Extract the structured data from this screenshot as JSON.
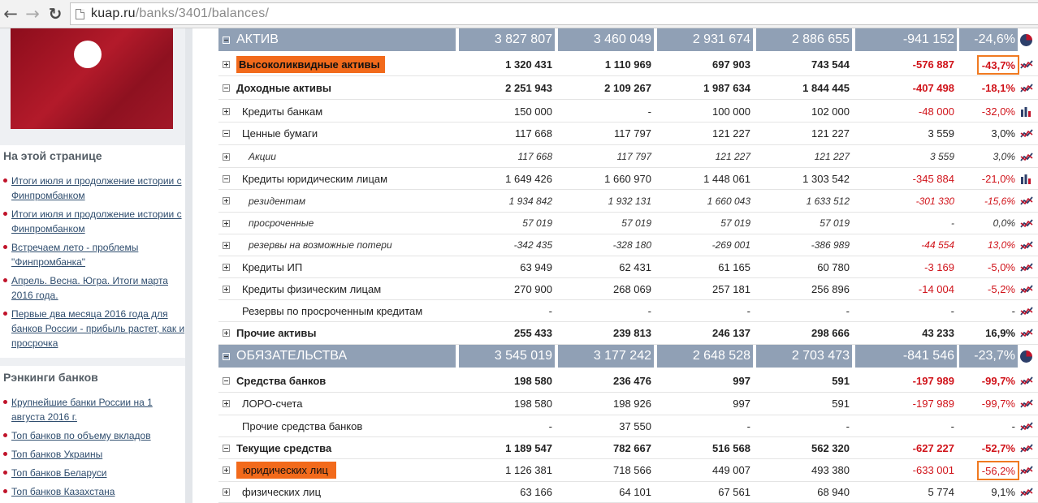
{
  "browser": {
    "back_glyph": "←",
    "forward_glyph": "→",
    "reload_glyph": "↻",
    "url_domain": "kuap.ru",
    "url_path": "/banks/3401/balances/"
  },
  "sidebar": {
    "on_page": {
      "title": "На этой странице",
      "links": [
        "Итоги июля и продолжение истории с Финпромбанком",
        "Итоги июля и продолжение истории с Финпромбанком",
        "Встречаем лето - проблемы \"Финпромбанка\"",
        "Апрель. Весна. Югра. Итоги марта 2016 года.",
        "Первые два месяца 2016 года для банков России - прибыль растет, как и просрочка"
      ]
    },
    "rankings": {
      "title": "Рэнкинги банков",
      "links": [
        "Крупнейшие банки России на 1 августа 2016 г.",
        "Топ банков по объему вкладов",
        "Топ банков Украины",
        "Топ банков Беларуси",
        "Топ банков Казахстана"
      ]
    }
  },
  "table": {
    "rows": [
      {
        "label": "АКТИВ",
        "type": "header",
        "v": [
          "3 827 807",
          "3 460 049",
          "2 931 674",
          "2 886 655",
          "-941 152",
          "-24,6%"
        ],
        "icon": "pie-chart-icon"
      },
      {
        "label": "Высоколиквидные активы",
        "type": "bold",
        "expander": "plus",
        "highlight": true,
        "v": [
          "1 320 431",
          "1 110 969",
          "697 903",
          "743 544",
          "-576 887",
          "-43,7%"
        ],
        "neg": true,
        "box": true,
        "icon": "trend-icon"
      },
      {
        "label": "Доходные активы",
        "type": "bold",
        "expander": "minus",
        "v": [
          "2 251 943",
          "2 109 267",
          "1 987 634",
          "1 844 445",
          "-407 498",
          "-18,1%"
        ],
        "neg": true,
        "icon": "trend-icon"
      },
      {
        "label": "Кредиты банкам",
        "type": "lvl1",
        "expander": "plus",
        "v": [
          "150 000",
          "-",
          "100 000",
          "102 000",
          "-48 000",
          "-32,0%"
        ],
        "neg": true,
        "icon": "bar-chart-icon"
      },
      {
        "label": "Ценные бумаги",
        "type": "lvl1",
        "expander": "minus",
        "v": [
          "117 668",
          "117 797",
          "121 227",
          "121 227",
          "3 559",
          "3,0%"
        ],
        "neg": false,
        "icon": "trend-icon"
      },
      {
        "label": "Акции",
        "type": "italic",
        "expander": "plus",
        "v": [
          "117 668",
          "117 797",
          "121 227",
          "121 227",
          "3 559",
          "3,0%"
        ],
        "neg": false,
        "icon": "trend-icon"
      },
      {
        "label": "Кредиты юридическим лицам",
        "type": "lvl1",
        "expander": "minus",
        "v": [
          "1 649 426",
          "1 660 970",
          "1 448 061",
          "1 303 542",
          "-345 884",
          "-21,0%"
        ],
        "neg": true,
        "icon": "bar-chart-icon"
      },
      {
        "label": "резидентам",
        "type": "italic",
        "expander": "plus",
        "v": [
          "1 934 842",
          "1 932 131",
          "1 660 043",
          "1 633 512",
          "-301 330",
          "-15,6%"
        ],
        "neg": true,
        "icon": "trend-icon"
      },
      {
        "label": "просроченные",
        "type": "italic",
        "expander": "plus",
        "v": [
          "57 019",
          "57 019",
          "57 019",
          "57 019",
          "-",
          "0,0%"
        ],
        "neg": false,
        "icon": "trend-icon"
      },
      {
        "label": "резервы на возможные потери",
        "type": "italic",
        "expander": "plus",
        "v": [
          "-342 435",
          "-328 180",
          "-269 001",
          "-386 989",
          "-44 554",
          "13,0%"
        ],
        "neg": true,
        "icon": "trend-icon"
      },
      {
        "label": "Кредиты ИП",
        "type": "lvl1",
        "expander": "plus",
        "v": [
          "63 949",
          "62 431",
          "61 165",
          "60 780",
          "-3 169",
          "-5,0%"
        ],
        "neg": true,
        "icon": "trend-icon"
      },
      {
        "label": "Кредиты физическим лицам",
        "type": "lvl1",
        "expander": "plus",
        "v": [
          "270 900",
          "268 069",
          "257 181",
          "256 896",
          "-14 004",
          "-5,2%"
        ],
        "neg": true,
        "icon": "trend-icon"
      },
      {
        "label": "Резервы по просроченным кредитам",
        "type": "lvl1",
        "expander": "none",
        "v": [
          "-",
          "-",
          "-",
          "-",
          "-",
          "-"
        ],
        "neg": false,
        "icon": "trend-icon"
      },
      {
        "label": "Прочие активы",
        "type": "bold",
        "expander": "plus",
        "v": [
          "255 433",
          "239 813",
          "246 137",
          "298 666",
          "43 233",
          "16,9%"
        ],
        "neg": false,
        "icon": "trend-icon"
      },
      {
        "label": "ОБЯЗАТЕЛЬСТВА",
        "type": "header",
        "v": [
          "3 545 019",
          "3 177 242",
          "2 648 528",
          "2 703 473",
          "-841 546",
          "-23,7%"
        ],
        "icon": "pie-chart-icon"
      },
      {
        "label": "Средства банков",
        "type": "bold",
        "expander": "minus",
        "v": [
          "198 580",
          "236 476",
          "997",
          "591",
          "-197 989",
          "-99,7%"
        ],
        "neg": true,
        "icon": "trend-icon"
      },
      {
        "label": "ЛОРО-счета",
        "type": "lvl1",
        "expander": "plus",
        "v": [
          "198 580",
          "198 926",
          "997",
          "591",
          "-197 989",
          "-99,7%"
        ],
        "neg": true,
        "icon": "trend-icon"
      },
      {
        "label": "Прочие средства банков",
        "type": "lvl1",
        "expander": "none",
        "v": [
          "-",
          "37 550",
          "-",
          "-",
          "-",
          "-"
        ],
        "neg": false,
        "icon": "trend-icon"
      },
      {
        "label": "Текущие средства",
        "type": "bold",
        "expander": "minus",
        "v": [
          "1 189 547",
          "782 667",
          "516 568",
          "562 320",
          "-627 227",
          "-52,7%"
        ],
        "neg": true,
        "icon": "trend-icon"
      },
      {
        "label": "юридических лиц",
        "type": "lvl1",
        "expander": "plus",
        "highlight": true,
        "v": [
          "1 126 381",
          "718 566",
          "449 007",
          "493 380",
          "-633 001",
          "-56,2%"
        ],
        "neg": true,
        "box": true,
        "icon": "trend-icon"
      },
      {
        "label": "физических лиц",
        "type": "lvl1",
        "expander": "plus",
        "v": [
          "63 166",
          "64 101",
          "67 561",
          "68 940",
          "5 774",
          "9,1%"
        ],
        "neg": false,
        "icon": "trend-icon"
      }
    ],
    "colors": {
      "header_bg": "#90a0b5",
      "negative": "#d0131a",
      "highlight": "#f26a1b",
      "brand_red": "#c0132a"
    }
  }
}
